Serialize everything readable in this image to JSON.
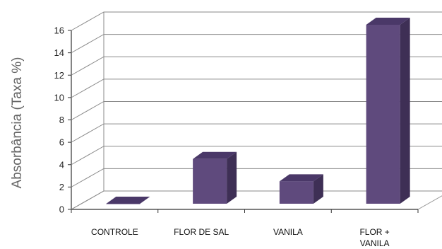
{
  "chart_data": {
    "type": "bar",
    "title": "",
    "xlabel": "",
    "ylabel": "Absorbância (Taxa %)",
    "ylim": [
      0,
      16
    ],
    "yticks": [
      0,
      2,
      4,
      6,
      8,
      10,
      12,
      14,
      16
    ],
    "grid": true,
    "three_d": true,
    "bar_color": "#5f4a7d",
    "categories": [
      [
        "CONTROLE"
      ],
      [
        "FLOR DE SAL"
      ],
      [
        "VANILA"
      ],
      [
        "FLOR +",
        "VANILA"
      ]
    ],
    "values": [
      0,
      4,
      2,
      16
    ]
  }
}
